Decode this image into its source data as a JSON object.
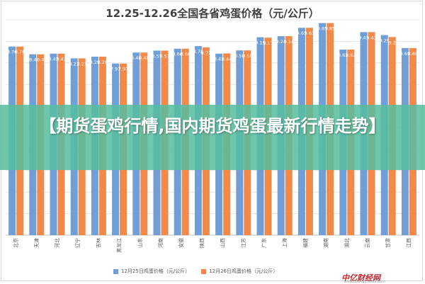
{
  "chart_data": {
    "type": "bar",
    "title": "12.25-12.26全国各省鸡蛋价格（元/公斤）",
    "categories": [
      "北京",
      "天津",
      "河北",
      "辽宁",
      "吉林",
      "黑龙江",
      "山东",
      "河南",
      "安徽",
      "陕西",
      "山西",
      "江苏",
      "广东",
      "上海",
      "福建",
      "湖南",
      "湖北",
      "云南",
      "甘肃",
      "江西"
    ],
    "series": [
      {
        "name": "12月25日鸡蛋价格（元/公斤）",
        "color": "#6f9fd6",
        "values": [
          8.76,
          8.4,
          8.43,
          8.21,
          8.29,
          7.97,
          8.48,
          8.57,
          8.66,
          8.78,
          8.43,
          8.58,
          9.19,
          9.24,
          9.63,
          9.85,
          8.62,
          9.43,
          9.29,
          8.69
        ]
      },
      {
        "name": "12月26日鸡蛋价格（元/公斤）",
        "color": "#f0894a",
        "values": [
          8.76,
          8.4,
          8.43,
          8.21,
          8.29,
          7.97,
          8.48,
          8.57,
          8.66,
          8.72,
          8.44,
          8.58,
          9.17,
          9.24,
          9.63,
          9.85,
          8.62,
          9.43,
          9.2,
          8.69
        ]
      }
    ],
    "ylim": [
      0,
      10
    ],
    "grid": true,
    "legend": "bottom"
  },
  "banner": {
    "text": "【期货蛋鸡行情,国内期货鸡蛋最新行情走势】"
  },
  "watermark": {
    "logo": "中亿财经网",
    "url": "www.zhongyi9999.com"
  }
}
